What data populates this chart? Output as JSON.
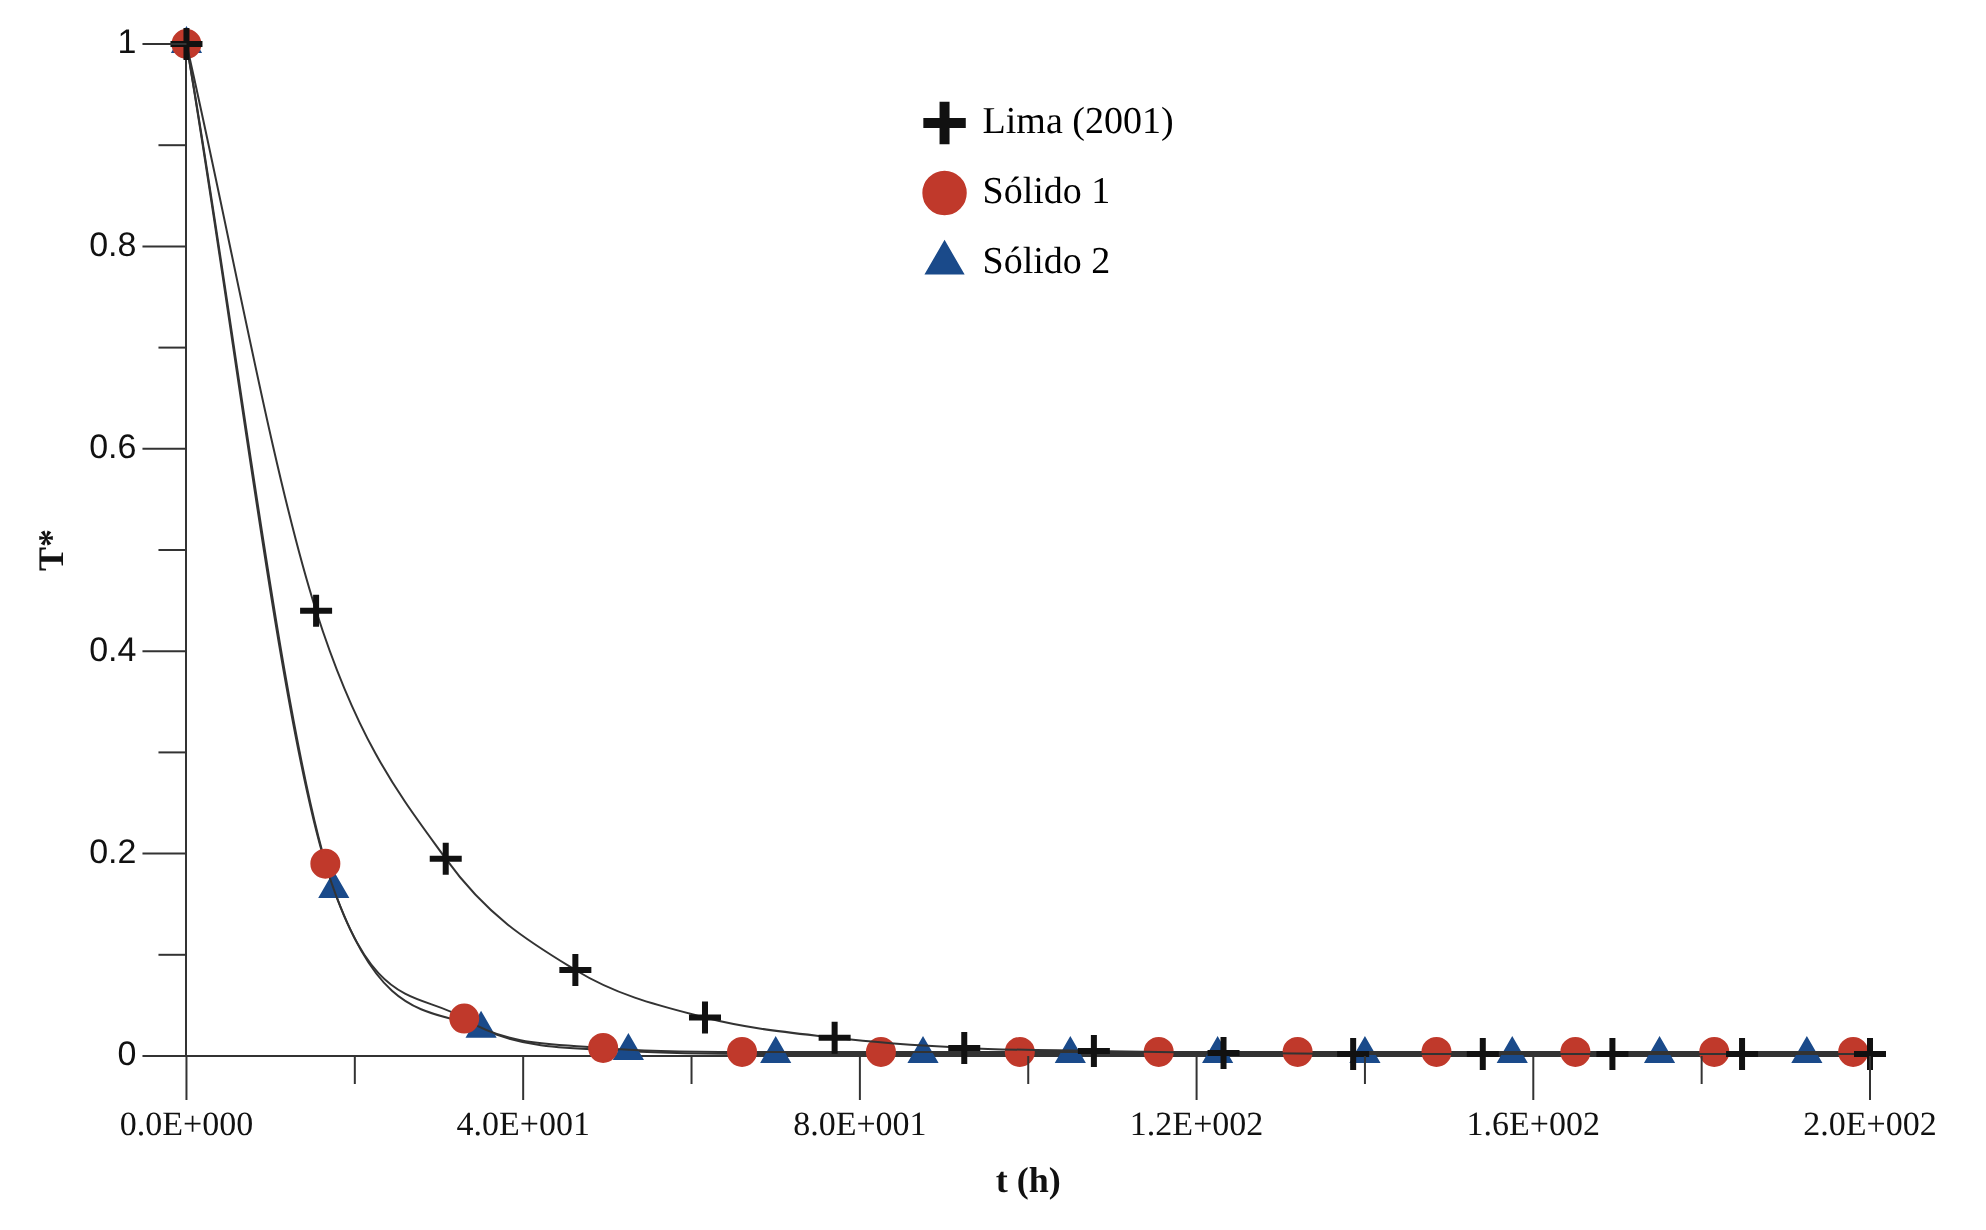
{
  "chart_data": {
    "type": "line",
    "xlabel": "t (h)",
    "ylabel": "T*",
    "xlim": [
      0,
      200
    ],
    "ylim": [
      0,
      1
    ],
    "xticks": [
      {
        "value": 0,
        "label": "0.0E+000"
      },
      {
        "value": 20,
        "label": null
      },
      {
        "value": 40,
        "label": "4.0E+001"
      },
      {
        "value": 60,
        "label": null
      },
      {
        "value": 80,
        "label": "8.0E+001"
      },
      {
        "value": 100,
        "label": null
      },
      {
        "value": 120,
        "label": "1.2E+002"
      },
      {
        "value": 140,
        "label": null
      },
      {
        "value": 160,
        "label": "1.6E+002"
      },
      {
        "value": 180,
        "label": null
      },
      {
        "value": 200,
        "label": "2.0E+002"
      }
    ],
    "yticks": [
      0,
      {
        "value": 0.1,
        "label": null
      },
      0.2,
      {
        "value": 0.3,
        "label": null
      },
      0.4,
      {
        "value": 0.5,
        "label": null
      },
      0.6,
      {
        "value": 0.7,
        "label": null
      },
      0.8,
      {
        "value": 0.9,
        "label": null
      },
      1
    ],
    "grid": false,
    "legend": "top right",
    "line_style": "solid",
    "series": [
      {
        "name": "Lima (2001)",
        "color": "#111111",
        "marker": "cross",
        "x": [
          0,
          15.4,
          30.8,
          46.2,
          61.6,
          77,
          92.4,
          107.8,
          123.2,
          138.6,
          154,
          169.4,
          184.8,
          200
        ],
        "values": [
          1,
          0.44,
          0.195,
          0.085,
          0.038,
          0.018,
          0.008,
          0.005,
          0.003,
          0.002,
          0.002,
          0.002,
          0.002,
          0.002
        ]
      },
      {
        "name": "Sólido 1",
        "color": "#c0392b",
        "marker": "circle",
        "x": [
          0,
          16.5,
          33,
          49.5,
          66,
          82.5,
          99,
          115.5,
          132,
          148.5,
          165,
          181.5,
          198
        ],
        "values": [
          1,
          0.19,
          0.037,
          0.008,
          0.004,
          0.004,
          0.004,
          0.004,
          0.004,
          0.004,
          0.004,
          0.004,
          0.004
        ]
      },
      {
        "name": "Sólido 2",
        "color": "#1a4a8a",
        "marker": "triangle",
        "x": [
          0,
          17.5,
          35,
          52.5,
          70,
          87.5,
          105,
          122.5,
          140,
          157.5,
          175,
          192.5
        ],
        "values": [
          1,
          0.165,
          0.027,
          0.005,
          0.002,
          0.002,
          0.002,
          0.002,
          0.002,
          0.002,
          0.002,
          0.002
        ]
      }
    ]
  }
}
